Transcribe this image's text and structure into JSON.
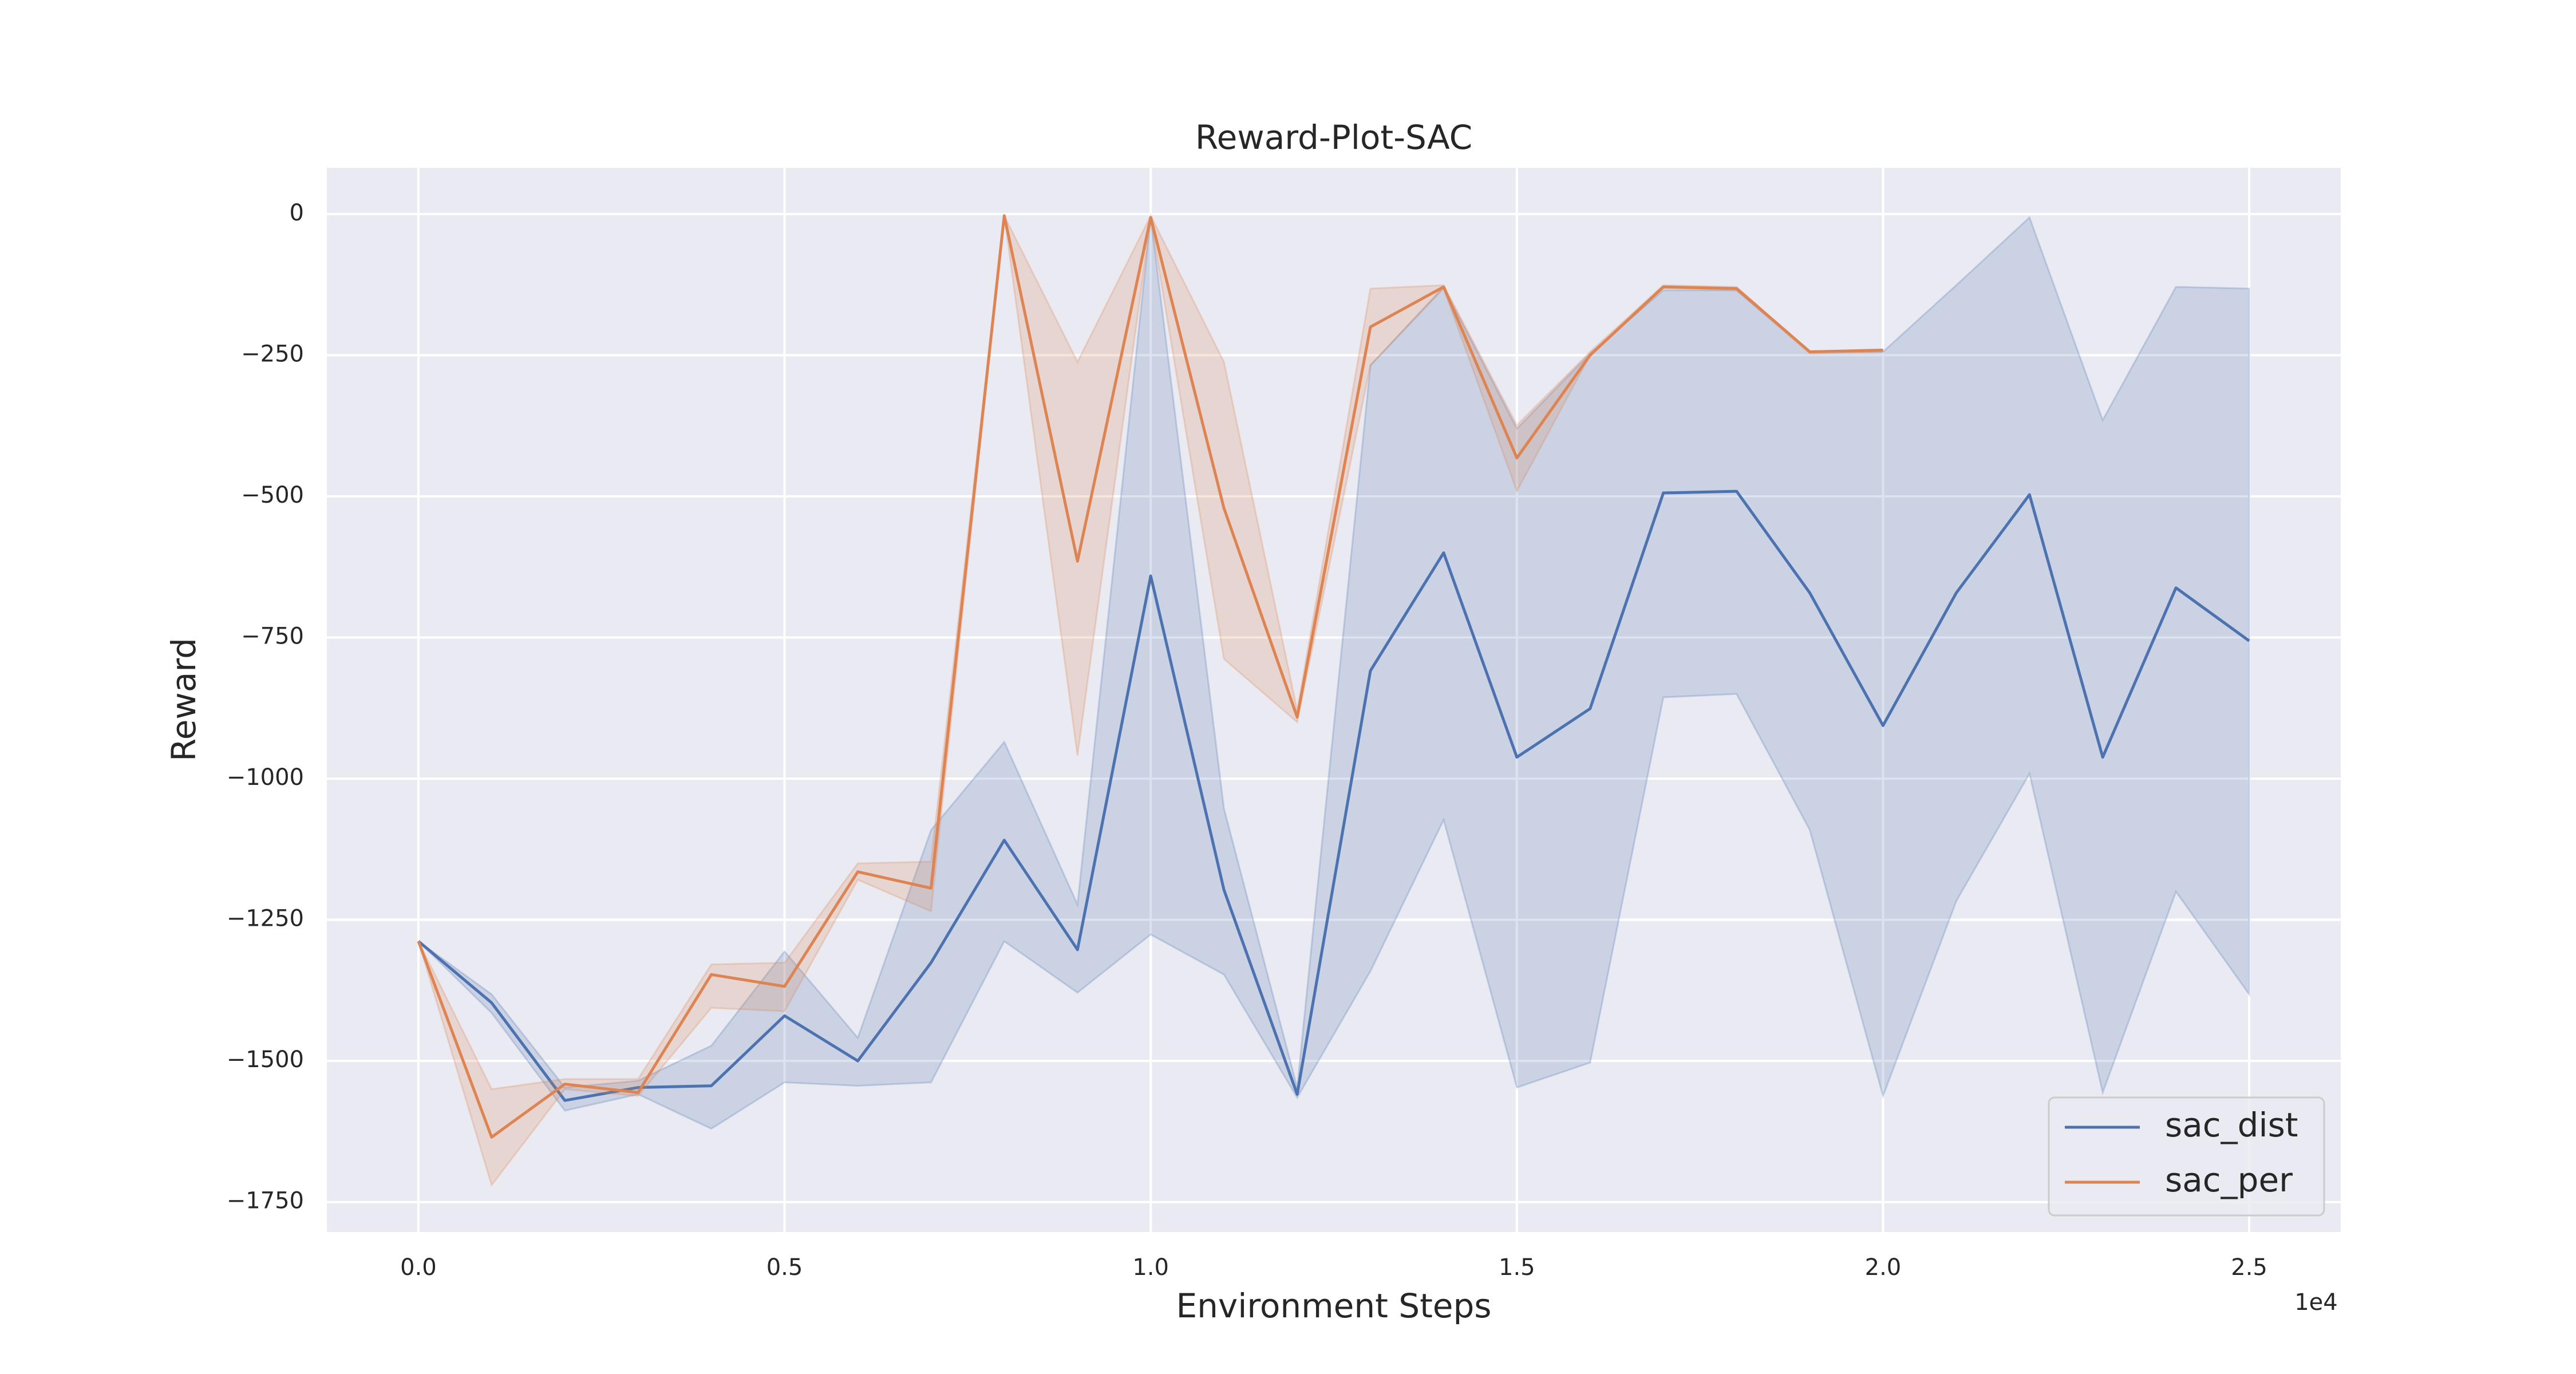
{
  "chart_data": {
    "type": "line",
    "title": "Reward-Plot-SAC",
    "xlabel": "Environment Steps",
    "ylabel": "Reward",
    "x_offset_label": "1e4",
    "xlim": [
      -1250,
      26250
    ],
    "ylim": [
      -1803,
      82
    ],
    "xticks": [
      {
        "value": 0,
        "label": "0.0"
      },
      {
        "value": 5000,
        "label": "0.5"
      },
      {
        "value": 10000,
        "label": "1.0"
      },
      {
        "value": 15000,
        "label": "1.5"
      },
      {
        "value": 20000,
        "label": "2.0"
      },
      {
        "value": 25000,
        "label": "2.5"
      }
    ],
    "yticks": [
      0,
      {
        "value": -250,
        "label": "−250"
      },
      {
        "value": -500,
        "label": "−500"
      },
      {
        "value": -750,
        "label": "−750"
      },
      {
        "value": -1000,
        "label": "−1000"
      },
      {
        "value": -1250,
        "label": "−1250"
      },
      {
        "value": -1500,
        "label": "−1500"
      },
      {
        "value": -1750,
        "label": "−1750"
      }
    ],
    "grid": true,
    "legend": "lower right",
    "series": [
      {
        "name": "sac_dist",
        "color": "#4c72b0",
        "x": [
          0,
          1000,
          2000,
          3000,
          4000,
          5000,
          6000,
          7000,
          8000,
          9000,
          10000,
          11000,
          12000,
          13000,
          14000,
          15000,
          16000,
          17000,
          18000,
          19000,
          20000,
          21000,
          22000,
          23000,
          24000,
          25000
        ],
        "values": [
          -1288,
          -1397,
          -1570,
          -1547,
          -1544,
          -1420,
          -1500,
          -1326,
          -1109,
          -1303,
          -641,
          -1197,
          -1559,
          -809,
          -600,
          -962,
          -876,
          -494,
          -491,
          -671,
          -906,
          -671,
          -497,
          -962,
          -662,
          -756
        ],
        "upper": [
          -1288,
          -1382,
          -1547,
          -1535,
          -1473,
          -1306,
          -1459,
          -1091,
          -935,
          -1223,
          -6,
          -1053,
          -1547,
          -268,
          -129,
          -380,
          -247,
          -135,
          -135,
          -244,
          -244,
          -126,
          -6,
          -365,
          -129,
          -132
        ],
        "lower": [
          -1288,
          -1415,
          -1588,
          -1559,
          -1620,
          -1538,
          -1544,
          -1538,
          -1288,
          -1379,
          -1276,
          -1347,
          -1565,
          -1341,
          -1073,
          -1547,
          -1503,
          -856,
          -850,
          -1091,
          -1562,
          -1217,
          -991,
          -1556,
          -1200,
          -1382
        ]
      },
      {
        "name": "sac_per",
        "color": "#dd8452",
        "x": [
          0,
          1000,
          2000,
          3000,
          4000,
          5000,
          6000,
          7000,
          8000,
          9000,
          10000,
          11000,
          12000,
          13000,
          14000,
          15000,
          16000,
          17000,
          18000,
          19000,
          20000
        ],
        "values": [
          -1288,
          -1635,
          -1541,
          -1556,
          -1347,
          -1368,
          -1165,
          -1194,
          -3,
          -615,
          -6,
          -521,
          -891,
          -200,
          -129,
          -432,
          -250,
          -129,
          -132,
          -244,
          -241
        ],
        "upper": [
          -1288,
          -1550,
          -1532,
          -1532,
          -1329,
          -1326,
          -1150,
          -1147,
          -3,
          -262,
          -3,
          -262,
          -879,
          -132,
          -126,
          -374,
          -244,
          -126,
          -129,
          -244,
          -241
        ],
        "lower": [
          -1288,
          -1720,
          -1550,
          -1562,
          -1406,
          -1412,
          -1179,
          -1235,
          -3,
          -959,
          -10,
          -788,
          -900,
          -268,
          -132,
          -491,
          -250,
          -132,
          -135,
          -247,
          -244
        ]
      }
    ]
  }
}
